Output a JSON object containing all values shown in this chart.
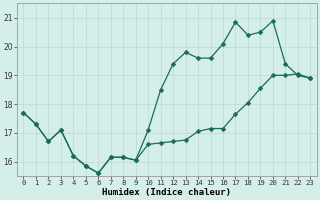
{
  "title": "",
  "xlabel": "Humidex (Indice chaleur)",
  "ylabel": "",
  "bg_color": "#d4eeea",
  "line_color": "#1a6b5a",
  "grid_color": "#b8d8d4",
  "xlim": [
    -0.5,
    23.5
  ],
  "ylim": [
    15.5,
    21.5
  ],
  "xticks": [
    0,
    1,
    2,
    3,
    4,
    5,
    6,
    7,
    8,
    9,
    10,
    11,
    12,
    13,
    14,
    15,
    16,
    17,
    18,
    19,
    20,
    21,
    22,
    23
  ],
  "yticks": [
    16,
    17,
    18,
    19,
    20,
    21
  ],
  "series1_x": [
    0,
    1,
    2,
    3,
    4,
    5,
    6,
    7,
    8,
    9,
    10,
    11,
    12,
    13,
    14,
    15,
    16,
    17,
    18,
    19,
    20,
    21,
    22,
    23
  ],
  "series1_y": [
    17.7,
    17.3,
    16.7,
    17.1,
    16.2,
    15.85,
    15.6,
    16.15,
    16.15,
    16.05,
    16.6,
    16.65,
    16.7,
    16.75,
    17.05,
    17.15,
    17.15,
    17.65,
    18.05,
    18.55,
    19.0,
    19.0,
    19.05,
    18.9
  ],
  "series2_x": [
    0,
    1,
    2,
    3,
    4,
    5,
    6,
    7,
    8,
    9,
    10,
    11,
    12,
    13,
    14,
    15,
    16,
    17,
    18,
    19,
    20,
    21,
    22,
    23
  ],
  "series2_y": [
    17.7,
    17.3,
    16.7,
    17.1,
    16.2,
    15.85,
    15.6,
    16.15,
    16.15,
    16.05,
    17.1,
    18.5,
    19.4,
    19.8,
    19.6,
    19.6,
    20.1,
    20.85,
    20.4,
    20.5,
    20.9,
    19.4,
    19.0,
    18.9
  ]
}
